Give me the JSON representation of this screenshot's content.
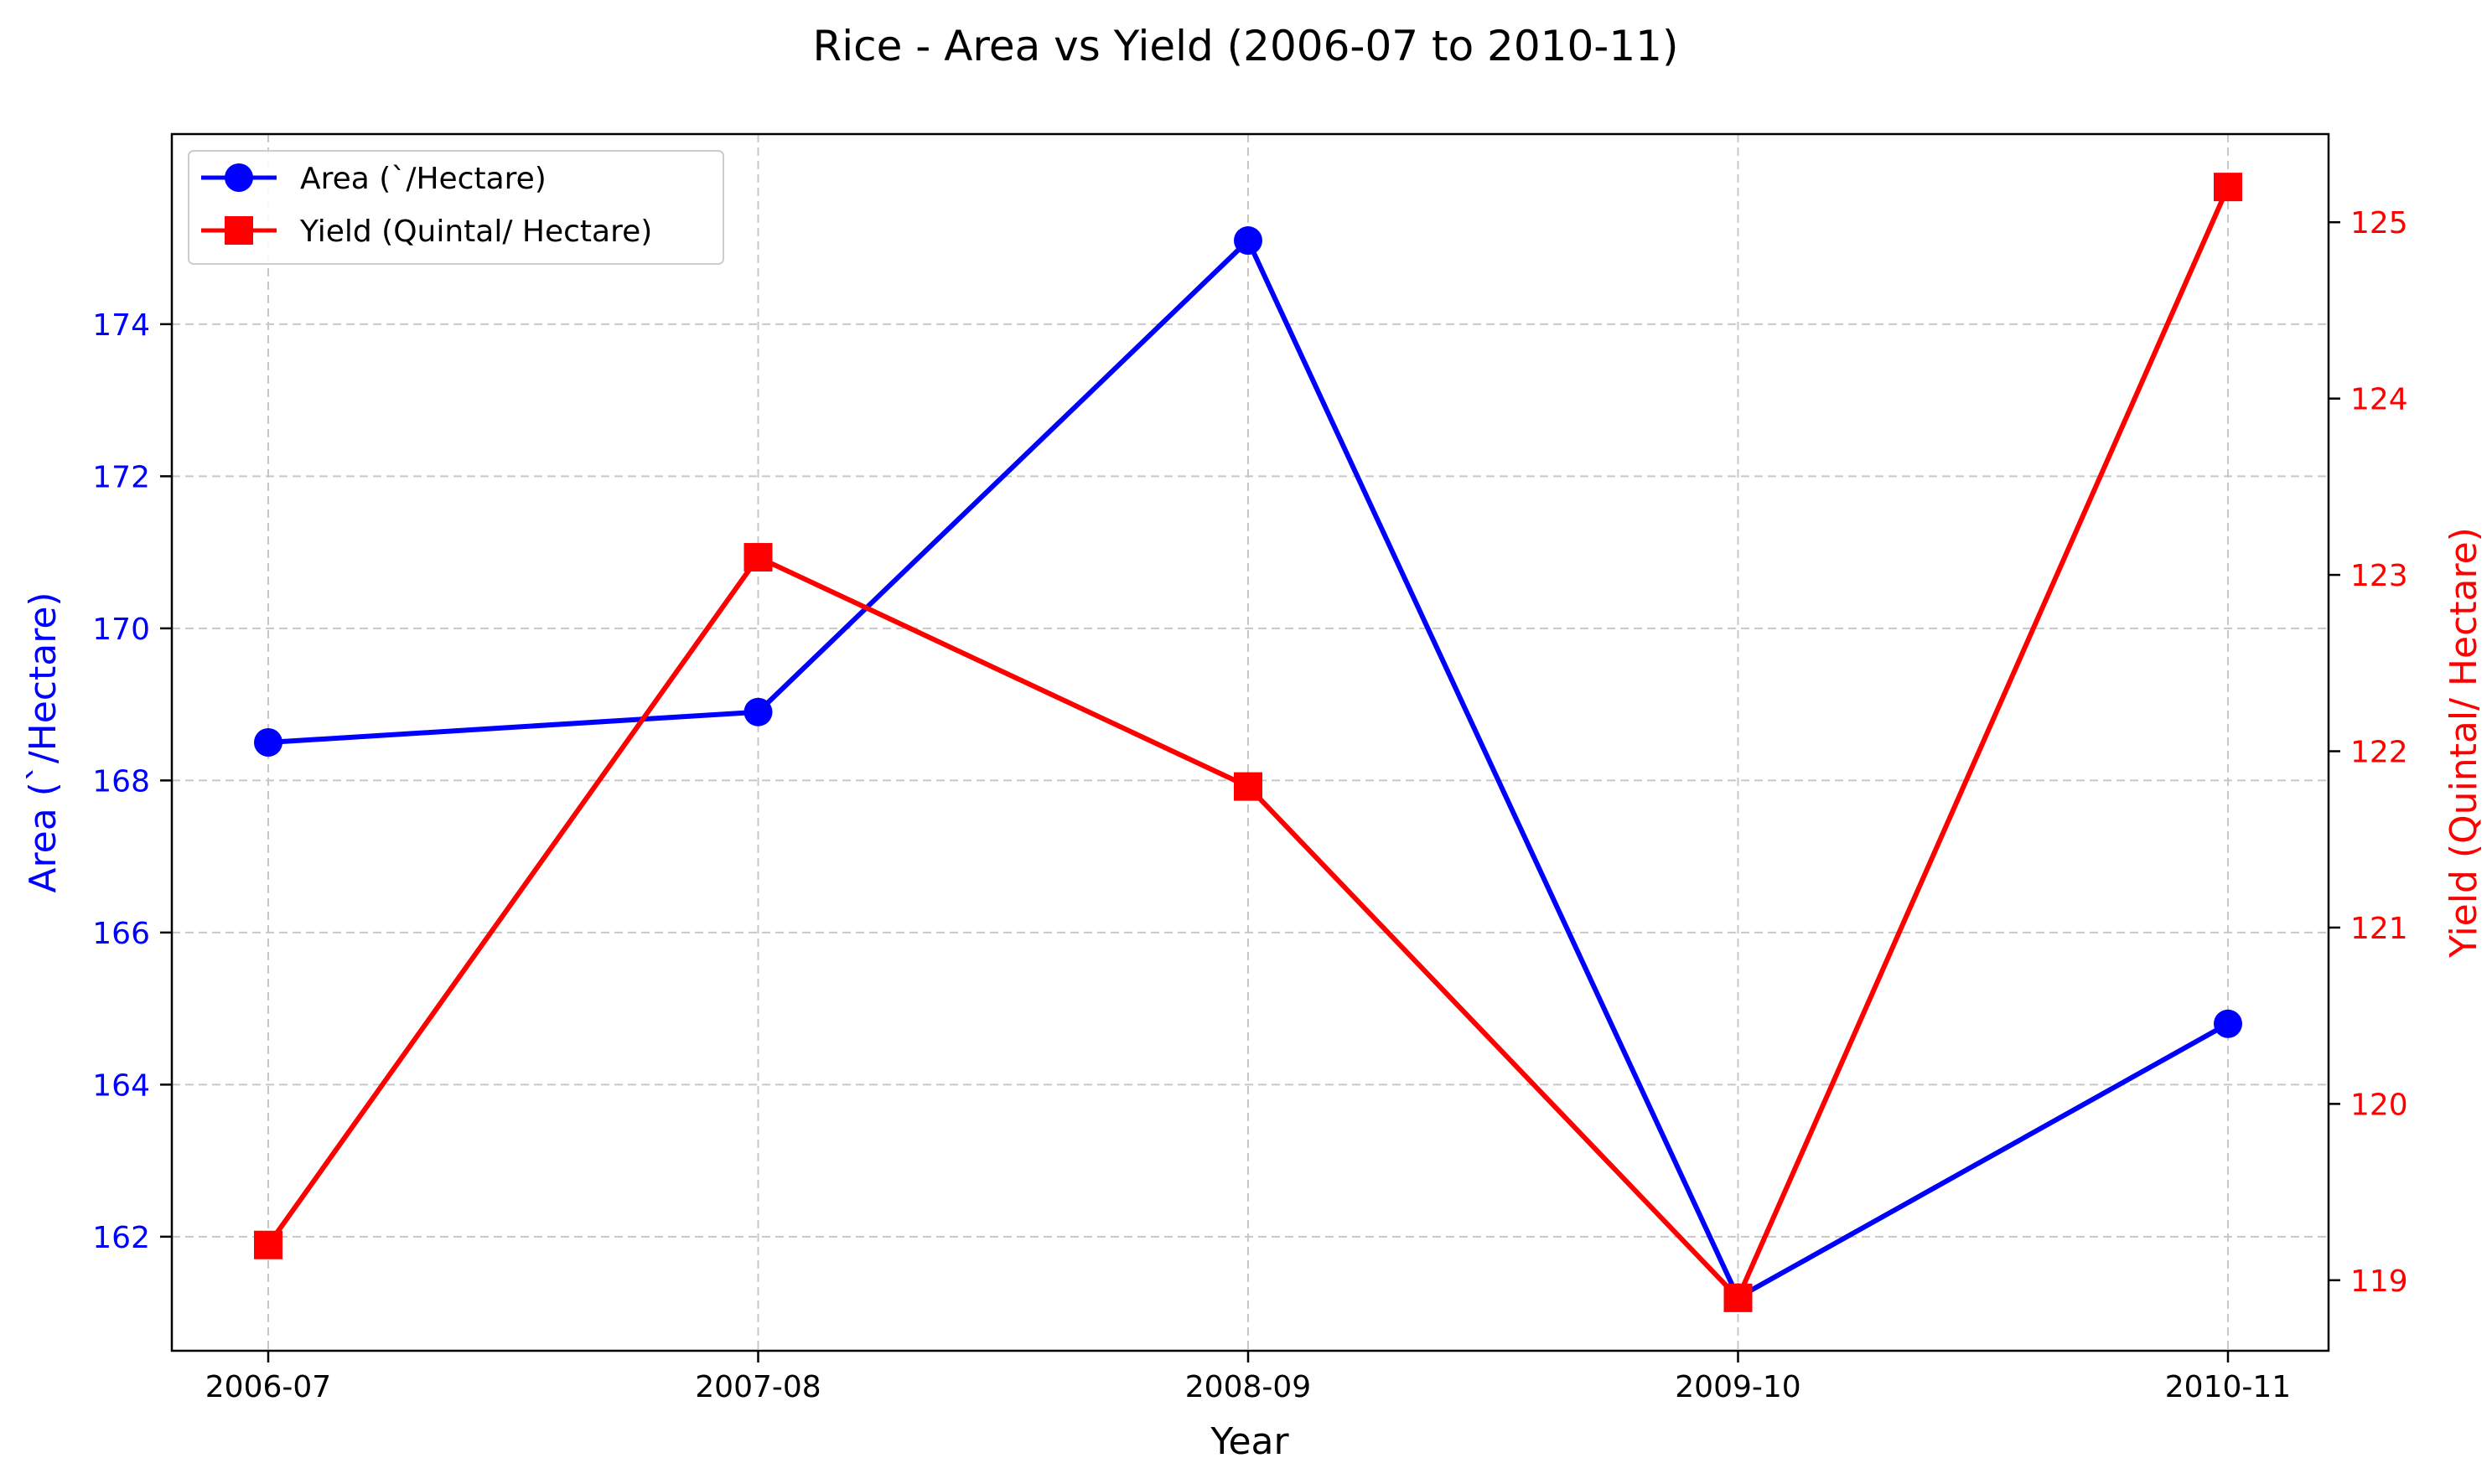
{
  "chart_data": {
    "type": "line",
    "title": "Rice - Area vs Yield (2006-07 to 2010-11)",
    "xlabel": "Year",
    "categories": [
      "2006-07",
      "2007-08",
      "2008-09",
      "2009-10",
      "2010-11"
    ],
    "grid": true,
    "legend_position": "top-left",
    "left_axis": {
      "label": "Area (`/Hectare)",
      "color": "#0000ff",
      "ylim": [
        160.5,
        176.5
      ],
      "ticks": [
        162,
        164,
        166,
        168,
        170,
        172,
        174
      ]
    },
    "right_axis": {
      "label": "Yield (Quintal/ Hectare)",
      "color": "#ff0000",
      "ylim": [
        118.6,
        125.5
      ],
      "ticks": [
        119,
        120,
        121,
        122,
        123,
        124,
        125
      ]
    },
    "series": [
      {
        "name": "Area (`/Hectare)",
        "axis": "left",
        "color": "#0000ff",
        "marker": "circle",
        "values": [
          168.5,
          168.9,
          175.1,
          161.2,
          164.8
        ]
      },
      {
        "name": "Yield (Quintal/ Hectare)",
        "axis": "right",
        "color": "#ff0000",
        "marker": "square",
        "values": [
          119.2,
          123.1,
          121.8,
          118.9,
          125.2
        ]
      }
    ]
  }
}
